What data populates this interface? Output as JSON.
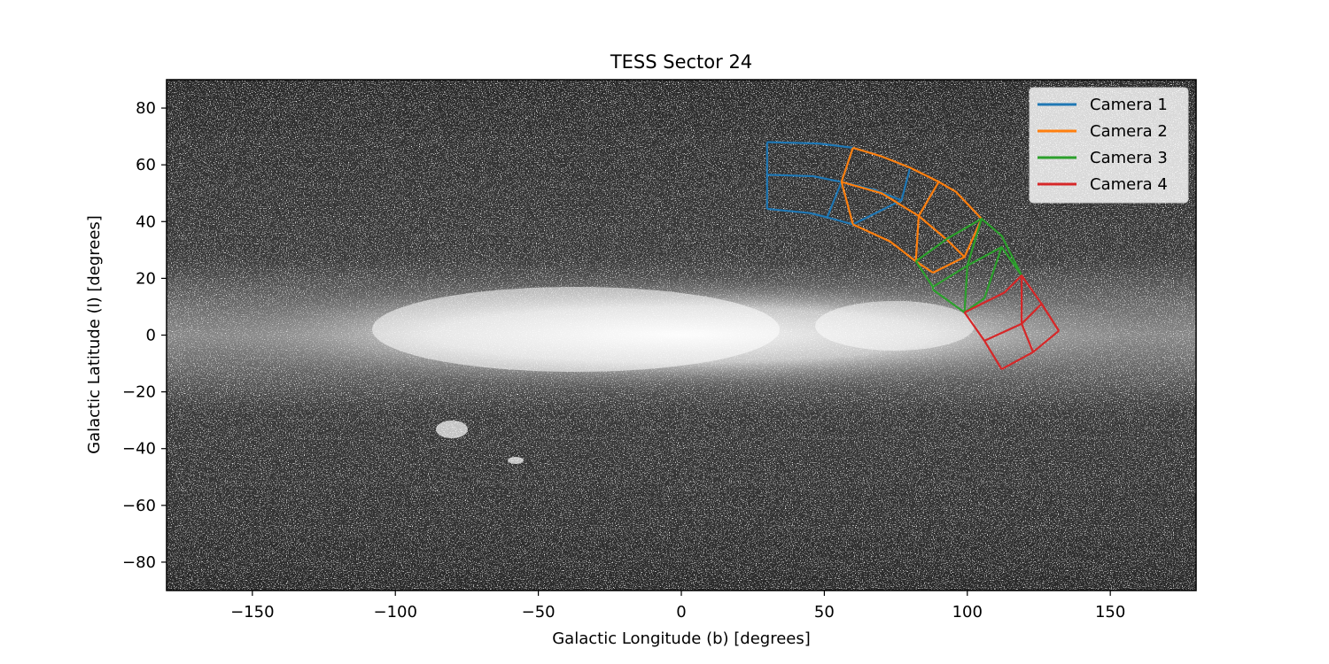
{
  "chart_data": {
    "type": "line",
    "title": "TESS Sector 24",
    "xlabel": "Galactic Longitude (b) [degrees]",
    "ylabel": "Galactic Latitude (l) [degrees]",
    "xlim": [
      -180,
      180
    ],
    "ylim": [
      -90,
      90
    ],
    "xticks": [
      -150,
      -100,
      -50,
      0,
      50,
      100,
      150
    ],
    "yticks": [
      -80,
      -60,
      -40,
      -20,
      0,
      20,
      40,
      60,
      80
    ],
    "xtick_labels": [
      "−150",
      "−100",
      "−50",
      "0",
      "50",
      "100",
      "150"
    ],
    "ytick_labels": [
      "−80",
      "−60",
      "−40",
      "−20",
      "0",
      "20",
      "40",
      "60",
      "80"
    ],
    "grid": false,
    "background": "grayscale all-sky image of the Milky Way",
    "legend_placement": "upper right",
    "series": [
      {
        "name": "Camera 1",
        "color": "#1f77b4",
        "ccd_grid": {
          "far_edge": [
            [
              30,
              68
            ],
            [
              48,
              67.5
            ],
            [
              60,
              66
            ],
            [
              70,
              63
            ],
            [
              80,
              59
            ]
          ],
          "mid_line": [
            [
              30,
              56.5
            ],
            [
              46,
              56
            ],
            [
              56,
              54
            ],
            [
              68,
              51
            ],
            [
              77,
              47.5
            ]
          ],
          "near_edge": [
            [
              30,
              44.5
            ],
            [
              45,
              43
            ],
            [
              51,
              41.5
            ],
            [
              60,
              39
            ]
          ]
        }
      },
      {
        "name": "Camera 2",
        "color": "#ff7f0e",
        "ccd_grid": {
          "far_edge": [
            [
              60,
              66
            ],
            [
              70,
              63
            ],
            [
              80,
              59
            ],
            [
              90,
              54
            ],
            [
              96,
              50.5
            ],
            [
              105,
              41
            ]
          ],
          "mid_line": [
            [
              56,
              54
            ],
            [
              70,
              50
            ],
            [
              83,
              42
            ],
            [
              93,
              33.5
            ],
            [
              99,
              27.5
            ]
          ],
          "near_edge": [
            [
              60,
              39
            ],
            [
              73,
              33
            ],
            [
              82,
              26
            ],
            [
              88,
              22
            ]
          ]
        }
      },
      {
        "name": "Camera 3",
        "color": "#2ca02c",
        "ccd_grid": {
          "far_edge": [
            [
              82,
              26
            ],
            [
              93,
              34
            ],
            [
              105,
              41
            ],
            [
              112,
              35
            ],
            [
              119,
              21
            ]
          ],
          "mid_line": [
            [
              88,
              17
            ],
            [
              100,
              24.5
            ],
            [
              112,
              31
            ]
          ],
          "near_edge": [
            [
              88,
              16
            ],
            [
              99,
              8
            ],
            [
              106,
              13
            ]
          ]
        }
      },
      {
        "name": "Camera 4",
        "color": "#d62728",
        "ccd_grid": {
          "far_edge": [
            [
              99,
              8
            ],
            [
              113,
              15
            ],
            [
              119,
              21
            ],
            [
              126,
              11
            ],
            [
              132,
              1.5
            ]
          ],
          "mid_line": [
            [
              106,
              -2
            ],
            [
              119,
              4
            ],
            [
              126,
              11
            ]
          ],
          "near_edge": [
            [
              112,
              -12
            ],
            [
              123,
              -6
            ],
            [
              132,
              1.5
            ]
          ]
        }
      }
    ]
  }
}
